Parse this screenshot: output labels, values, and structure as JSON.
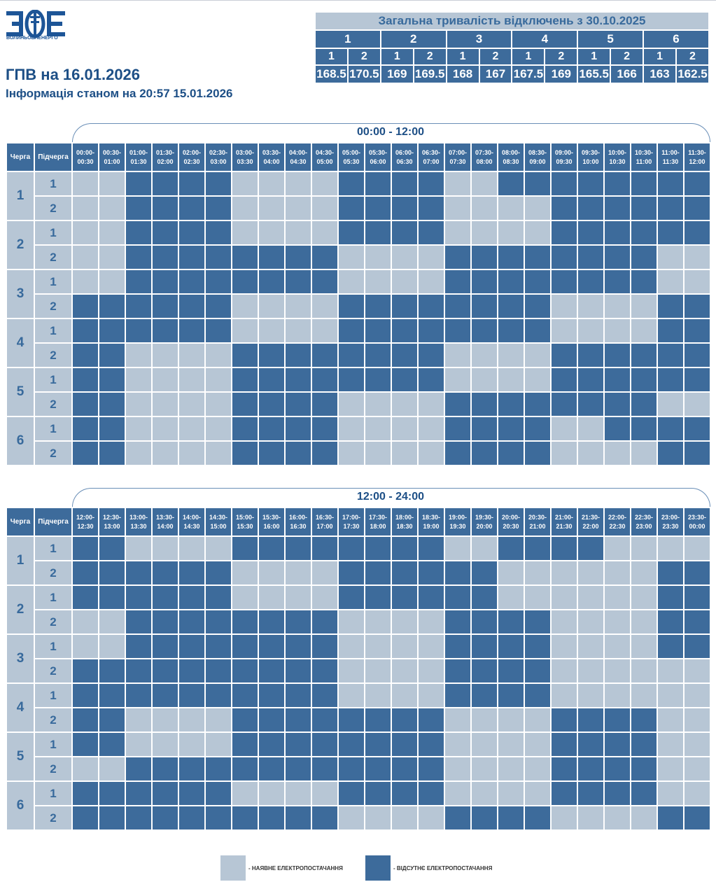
{
  "logo": {
    "text": "ВОЛИНЬОБЛЕНЕРГО"
  },
  "title": "ГПВ на 16.01.2026",
  "subtitle": "Інформація станом на 20:57 15.01.2026",
  "summary": {
    "header": "Загальна тривалість відключень з 30.10.2025",
    "queues": [
      "1",
      "2",
      "3",
      "4",
      "5",
      "6"
    ],
    "subqueues": [
      "1",
      "2",
      "1",
      "2",
      "1",
      "2",
      "1",
      "2",
      "1",
      "2",
      "1",
      "2"
    ],
    "values": [
      "168.5",
      "170.5",
      "169",
      "169.5",
      "168",
      "167",
      "167.5",
      "169",
      "165.5",
      "166",
      "163",
      "162.5"
    ]
  },
  "headers": {
    "queue": "Черга",
    "subqueue": "Підчерга"
  },
  "half1": {
    "range": "00:00 - 12:00",
    "slots": [
      [
        "00:00-",
        "00:30"
      ],
      [
        "00:30-",
        "01:00"
      ],
      [
        "01:00-",
        "01:30"
      ],
      [
        "01:30-",
        "02:00"
      ],
      [
        "02:00-",
        "02:30"
      ],
      [
        "02:30-",
        "03:00"
      ],
      [
        "03:00-",
        "03:30"
      ],
      [
        "03:30-",
        "04:00"
      ],
      [
        "04:00-",
        "04:30"
      ],
      [
        "04:30-",
        "05:00"
      ],
      [
        "05:00-",
        "05:30"
      ],
      [
        "05:30-",
        "06:00"
      ],
      [
        "06:00-",
        "06:30"
      ],
      [
        "06:30-",
        "07:00"
      ],
      [
        "07:00-",
        "07:30"
      ],
      [
        "07:30-",
        "08:00"
      ],
      [
        "08:00-",
        "08:30"
      ],
      [
        "08:30-",
        "09:00"
      ],
      [
        "09:00-",
        "09:30"
      ],
      [
        "09:30-",
        "10:00"
      ],
      [
        "10:00-",
        "10:30"
      ],
      [
        "10:30-",
        "11:00"
      ],
      [
        "11:00-",
        "11:30"
      ],
      [
        "11:30-",
        "12:00"
      ]
    ],
    "rows": [
      "001111000011110011111111",
      "001111000011110000111111",
      "001111000011110000111111",
      "001111111100001111111100",
      "001111111100001111111100",
      "111111000011111111000011",
      "111111000011111111000011",
      "110000111111110000111111",
      "110000111111110000111111",
      "110000111100001111111100",
      "110000111100001111001111",
      "110000111100001111000011"
    ]
  },
  "half2": {
    "range": "12:00 - 24:00",
    "slots": [
      [
        "12:00-",
        "12:30"
      ],
      [
        "12:30-",
        "13:00"
      ],
      [
        "13:00-",
        "13:30"
      ],
      [
        "13:30-",
        "14:00"
      ],
      [
        "14:00-",
        "14:30"
      ],
      [
        "14:30-",
        "15:00"
      ],
      [
        "15:00-",
        "15:30"
      ],
      [
        "15:30-",
        "16:00"
      ],
      [
        "16:00-",
        "16:30"
      ],
      [
        "16:30-",
        "17:00"
      ],
      [
        "17:00-",
        "17:30"
      ],
      [
        "17:30-",
        "18:00"
      ],
      [
        "18:00-",
        "18:30"
      ],
      [
        "18:30-",
        "19:00"
      ],
      [
        "19:00-",
        "19:30"
      ],
      [
        "19:30-",
        "20:00"
      ],
      [
        "20:00-",
        "20:30"
      ],
      [
        "20:30-",
        "21:00"
      ],
      [
        "21:00-",
        "21:30"
      ],
      [
        "21:30-",
        "22:00"
      ],
      [
        "22:00-",
        "22:30"
      ],
      [
        "22:30-",
        "23:00"
      ],
      [
        "23:00-",
        "23:30"
      ],
      [
        "23:30-",
        "00:00"
      ]
    ],
    "rows": [
      "110000111111110011110000",
      "111111000011111100000011",
      "111111000011111100000011",
      "001111111100001111000011",
      "001111111100001111000011",
      "111111111100001111000000",
      "111111111100001111000000",
      "110000111111110000111100",
      "110000111111110000111100",
      "001111111111110000111100",
      "111111000011110000111100",
      "111111111100001111000011"
    ]
  },
  "legend": {
    "on": "- НАЯВНЕ ЕЛЕКТРОПОСТАЧАННЯ",
    "off": "- ВІДСУТНЄ ЕЛЕКТРОПОСТАЧАННЯ",
    "on_color": "#b7c6d5",
    "off_color": "#3d6b9b"
  }
}
